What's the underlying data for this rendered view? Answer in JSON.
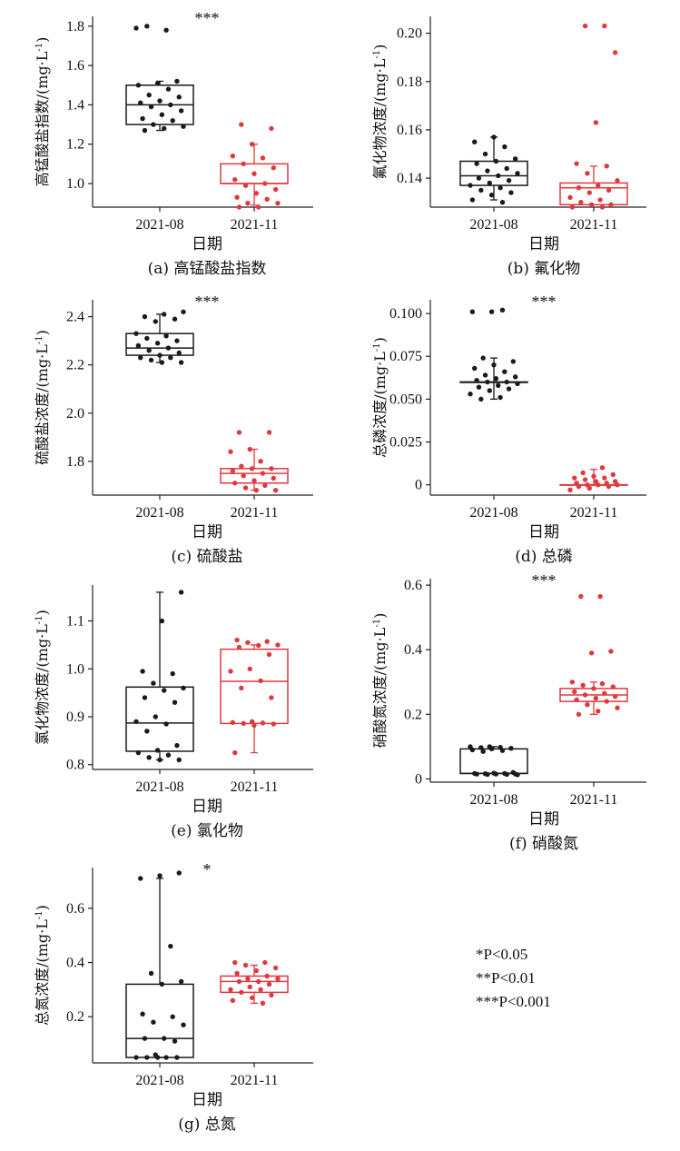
{
  "colors": {
    "group_a": "#1a1a1a",
    "group_b": "#e0393e",
    "axis": "#222222"
  },
  "significance_legend": [
    "*P<0.05",
    "**P<0.01",
    "***P<0.001"
  ],
  "chart_data": [
    {
      "type": "boxplot",
      "caption": "(a) 高锰酸盐指数",
      "ylabel": "高锰酸盐指数/(mg·L⁻¹)",
      "xlabel": "日期",
      "categories": [
        "2021-08",
        "2021-11"
      ],
      "ylim": [
        0.88,
        1.85
      ],
      "yticks": [
        1.0,
        1.2,
        1.4,
        1.6,
        1.8
      ],
      "ytick_labels": [
        "1.0",
        "1.2",
        "1.4",
        "1.6",
        "1.8"
      ],
      "significance": "***",
      "boxes": [
        {
          "q1": 1.3,
          "median": 1.4,
          "q3": 1.5,
          "whisker_low": 1.27,
          "whisker_high": 1.52
        },
        {
          "q1": 1.0,
          "median": 1.0,
          "q3": 1.1,
          "whisker_low": 0.89,
          "whisker_high": 1.2
        }
      ],
      "points": [
        [
          1.79,
          1.78,
          1.8,
          1.52,
          1.51,
          1.5,
          1.48,
          1.45,
          1.44,
          1.42,
          1.41,
          1.4,
          1.39,
          1.37,
          1.35,
          1.33,
          1.32,
          1.3,
          1.29,
          1.28,
          1.27
        ],
        [
          1.3,
          1.28,
          1.2,
          1.14,
          1.13,
          1.1,
          1.08,
          1.05,
          1.02,
          1.0,
          0.99,
          0.97,
          0.95,
          0.93,
          0.92,
          0.9,
          0.9,
          0.88,
          0.88
        ]
      ]
    },
    {
      "type": "boxplot",
      "caption": "(b) 氟化物",
      "ylabel": "氟化物浓度/(mg·L⁻¹)",
      "xlabel": "日期",
      "categories": [
        "2021-08",
        "2021-11"
      ],
      "ylim": [
        0.128,
        0.207
      ],
      "yticks": [
        0.14,
        0.16,
        0.18,
        0.2
      ],
      "ytick_labels": [
        "0.14",
        "0.16",
        "0.18",
        "0.20"
      ],
      "significance": "",
      "boxes": [
        {
          "q1": 0.137,
          "median": 0.141,
          "q3": 0.147,
          "whisker_low": 0.131,
          "whisker_high": 0.157
        },
        {
          "q1": 0.129,
          "median": 0.136,
          "q3": 0.138,
          "whisker_low": 0.129,
          "whisker_high": 0.145
        }
      ],
      "points": [
        [
          0.157,
          0.155,
          0.153,
          0.15,
          0.148,
          0.147,
          0.146,
          0.144,
          0.143,
          0.142,
          0.141,
          0.14,
          0.139,
          0.138,
          0.137,
          0.136,
          0.135,
          0.134,
          0.133,
          0.131,
          0.13
        ],
        [
          0.203,
          0.203,
          0.192,
          0.163,
          0.146,
          0.145,
          0.142,
          0.139,
          0.137,
          0.136,
          0.135,
          0.134,
          0.132,
          0.131,
          0.13,
          0.129,
          0.129,
          0.128,
          0.128
        ]
      ]
    },
    {
      "type": "boxplot",
      "caption": "(c) 硫酸盐",
      "ylabel": "硫酸盐浓度/(mg·L⁻¹)",
      "xlabel": "日期",
      "categories": [
        "2021-08",
        "2021-11"
      ],
      "ylim": [
        1.66,
        2.47
      ],
      "yticks": [
        1.8,
        2.0,
        2.2,
        2.4
      ],
      "ytick_labels": [
        "1.8",
        "2.0",
        "2.2",
        "2.4"
      ],
      "significance": "***",
      "boxes": [
        {
          "q1": 2.24,
          "median": 2.27,
          "q3": 2.33,
          "whisker_low": 2.21,
          "whisker_high": 2.41
        },
        {
          "q1": 1.71,
          "median": 1.75,
          "q3": 1.77,
          "whisker_low": 1.68,
          "whisker_high": 1.85
        }
      ],
      "points": [
        [
          2.42,
          2.41,
          2.4,
          2.39,
          2.38,
          2.33,
          2.32,
          2.31,
          2.3,
          2.29,
          2.28,
          2.27,
          2.26,
          2.25,
          2.24,
          2.23,
          2.23,
          2.22,
          2.21,
          2.21
        ],
        [
          1.92,
          1.92,
          1.85,
          1.84,
          1.8,
          1.78,
          1.77,
          1.77,
          1.76,
          1.75,
          1.74,
          1.73,
          1.72,
          1.71,
          1.7,
          1.69,
          1.68,
          1.68
        ]
      ]
    },
    {
      "type": "boxplot",
      "caption": "(d) 总磷",
      "ylabel": "总磷浓度/(mg·L⁻¹)",
      "xlabel": "日期",
      "categories": [
        "2021-08",
        "2021-11"
      ],
      "ylim": [
        -0.006,
        0.108
      ],
      "yticks": [
        0,
        0.025,
        0.05,
        0.075,
        0.1
      ],
      "ytick_labels": [
        "0",
        "0.025",
        "0.050",
        "0.075",
        "0.100"
      ],
      "significance": "***",
      "boxes": [
        {
          "q1": 0.06,
          "median": 0.06,
          "q3": 0.06,
          "whisker_low": 0.05,
          "whisker_high": 0.074
        },
        {
          "q1": 0.0,
          "median": 0.0,
          "q3": 0.0,
          "whisker_low": 0.0,
          "whisker_high": 0.009
        }
      ],
      "points": [
        [
          0.101,
          0.101,
          0.102,
          0.074,
          0.072,
          0.07,
          0.068,
          0.066,
          0.064,
          0.063,
          0.062,
          0.061,
          0.06,
          0.06,
          0.059,
          0.058,
          0.057,
          0.056,
          0.055,
          0.053,
          0.051,
          0.05
        ],
        [
          0.01,
          0.007,
          0.006,
          0.005,
          0.004,
          0.004,
          0.003,
          0.002,
          0.002,
          0.001,
          0.001,
          0.0,
          0.0,
          0.0,
          -0.001,
          -0.001,
          -0.002,
          -0.003
        ]
      ]
    },
    {
      "type": "boxplot",
      "caption": "(e) 氯化物",
      "ylabel": "氯化物浓度/(mg·L⁻¹)",
      "xlabel": "日期",
      "categories": [
        "2021-08",
        "2021-11"
      ],
      "ylim": [
        0.79,
        1.175
      ],
      "yticks": [
        0.8,
        0.9,
        1.0,
        1.1
      ],
      "ytick_labels": [
        "0.8",
        "0.9",
        "1.0",
        "1.1"
      ],
      "significance": "",
      "boxes": [
        {
          "q1": 0.828,
          "median": 0.887,
          "q3": 0.962,
          "whisker_low": 0.81,
          "whisker_high": 1.16
        },
        {
          "q1": 0.886,
          "median": 0.974,
          "q3": 1.041,
          "whisker_low": 0.825,
          "whisker_high": 1.05
        }
      ],
      "points": [
        [
          1.16,
          1.1,
          0.995,
          0.99,
          0.97,
          0.96,
          0.955,
          0.94,
          0.93,
          0.9,
          0.89,
          0.885,
          0.87,
          0.84,
          0.83,
          0.825,
          0.82,
          0.815,
          0.81,
          0.81
        ],
        [
          1.06,
          1.057,
          1.055,
          1.05,
          1.049,
          1.045,
          1.03,
          1.0,
          0.995,
          0.975,
          0.96,
          0.94,
          0.89,
          0.888,
          0.887,
          0.886,
          0.885,
          0.882,
          0.825
        ]
      ]
    },
    {
      "type": "boxplot",
      "caption": "(f) 硝酸氮",
      "ylabel": "硝酸氮浓度/(mg·L⁻¹)",
      "xlabel": "日期",
      "categories": [
        "2021-08",
        "2021-11"
      ],
      "ylim": [
        -0.01,
        0.62
      ],
      "yticks": [
        0,
        0.2,
        0.4,
        0.6
      ],
      "ytick_labels": [
        "0",
        "0.2",
        "0.4",
        "0.6"
      ],
      "significance": "***",
      "boxes": [
        {
          "q1": 0.017,
          "median": 0.017,
          "q3": 0.093,
          "whisker_low": 0.017,
          "whisker_high": 0.1
        },
        {
          "q1": 0.24,
          "median": 0.26,
          "q3": 0.28,
          "whisker_low": 0.2,
          "whisker_high": 0.3
        }
      ],
      "points": [
        [
          0.1,
          0.1,
          0.098,
          0.097,
          0.095,
          0.093,
          0.09,
          0.088,
          0.085,
          0.02,
          0.018,
          0.017,
          0.017,
          0.016,
          0.015,
          0.015,
          0.015,
          0.014,
          0.014,
          0.013
        ],
        [
          0.565,
          0.565,
          0.395,
          0.39,
          0.3,
          0.295,
          0.29,
          0.285,
          0.28,
          0.27,
          0.265,
          0.26,
          0.255,
          0.25,
          0.245,
          0.24,
          0.23,
          0.22,
          0.21,
          0.2
        ]
      ]
    },
    {
      "type": "boxplot",
      "caption": "(g) 总氮",
      "ylabel": "总氮浓度/(mg·L⁻¹)",
      "xlabel": "日期",
      "categories": [
        "2021-08",
        "2021-11"
      ],
      "ylim": [
        0.03,
        0.75
      ],
      "yticks": [
        0.2,
        0.4,
        0.6
      ],
      "ytick_labels": [
        "0.2",
        "0.4",
        "0.6"
      ],
      "significance": "*",
      "boxes": [
        {
          "q1": 0.05,
          "median": 0.12,
          "q3": 0.32,
          "whisker_low": 0.05,
          "whisker_high": 0.71
        },
        {
          "q1": 0.29,
          "median": 0.33,
          "q3": 0.35,
          "whisker_low": 0.25,
          "whisker_high": 0.39
        }
      ],
      "points": [
        [
          0.73,
          0.72,
          0.71,
          0.46,
          0.36,
          0.33,
          0.32,
          0.21,
          0.2,
          0.18,
          0.17,
          0.12,
          0.12,
          0.11,
          0.06,
          0.05,
          0.05,
          0.05,
          0.05,
          0.05
        ],
        [
          0.4,
          0.4,
          0.39,
          0.38,
          0.37,
          0.36,
          0.35,
          0.34,
          0.34,
          0.33,
          0.33,
          0.32,
          0.31,
          0.3,
          0.3,
          0.29,
          0.28,
          0.27,
          0.26,
          0.25
        ]
      ]
    }
  ]
}
